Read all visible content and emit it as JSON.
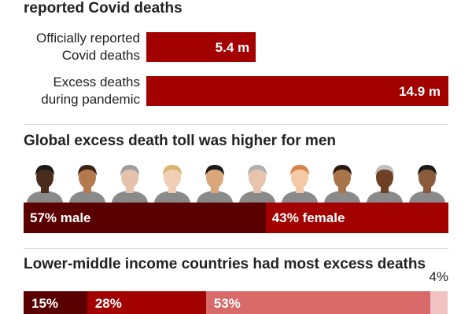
{
  "colors": {
    "bar": "#a30000",
    "male": "#5a0000",
    "female": "#a30000",
    "income": [
      "#5a0000",
      "#a30000",
      "#d86a6a",
      "#f1c2c2"
    ],
    "skin": [
      "#4a2c1c",
      "#b47a4e",
      "#e4c2ac",
      "#f0cfb4",
      "#d9a77a",
      "#e8c4ad",
      "#f3c9a6",
      "#a8744a",
      "#6e4024",
      "#8a5a3c"
    ],
    "hair": [
      "#1a1a1a",
      "#3a2418",
      "#9e9e9e",
      "#d7b46a",
      "#1a1a1a",
      "#b0b0b0",
      "#d9824a",
      "#2a1a12",
      "#c0c0c0",
      "#1a1a1a"
    ],
    "shirt": "#8a8a8a"
  },
  "chart_data": [
    {
      "type": "bar",
      "title": "reported Covid deaths",
      "categories": [
        "Officially reported Covid deaths",
        "Excess deaths during pandemic"
      ],
      "category_lines": [
        [
          "Officially reported",
          "Covid deaths"
        ],
        [
          "Excess deaths",
          "during pandemic"
        ]
      ],
      "values": [
        5.4,
        14.9
      ],
      "value_labels": [
        "5.4 m",
        "14.9 m"
      ]
    },
    {
      "type": "bar",
      "title": "Global excess death toll was higher for men",
      "categories": [
        "male",
        "female"
      ],
      "values": [
        57,
        43
      ],
      "value_labels": [
        "57% male",
        "43% female"
      ]
    },
    {
      "type": "bar",
      "title": "Lower-middle income countries had most excess deaths",
      "values": [
        15,
        28,
        53,
        4
      ],
      "value_labels": [
        "15%",
        "28%",
        "53%",
        "4%"
      ]
    }
  ]
}
